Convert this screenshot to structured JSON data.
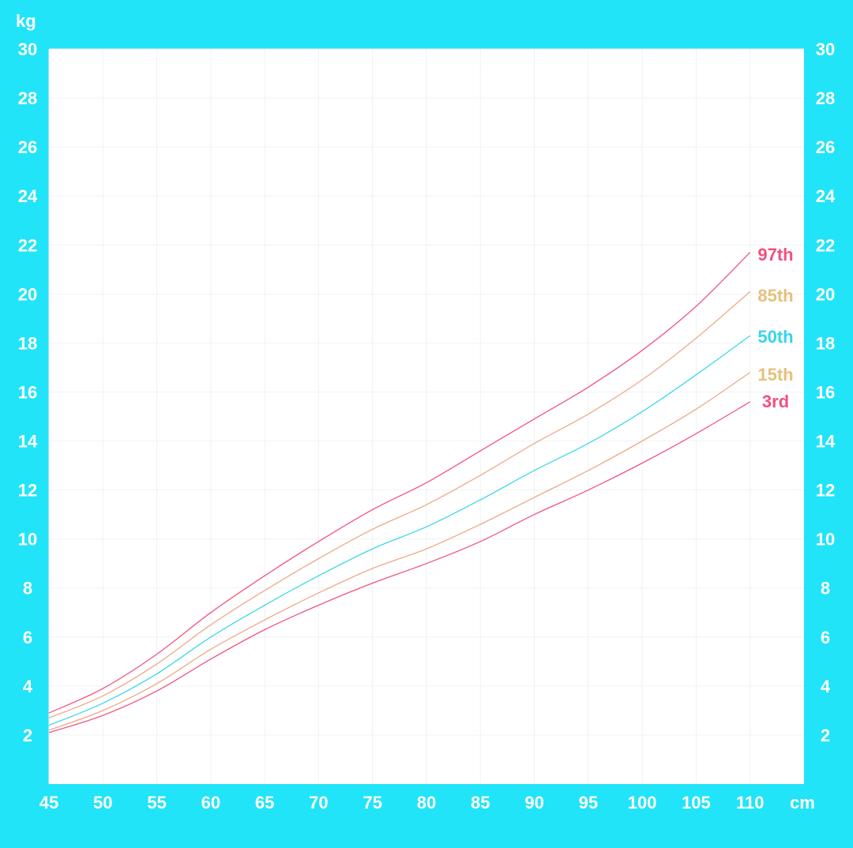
{
  "chart_data": {
    "type": "line",
    "xlabel": "",
    "ylabel": "",
    "x_unit": "cm",
    "y_unit": "kg",
    "xlim": [
      45,
      115
    ],
    "ylim": [
      0,
      30
    ],
    "x_ticks": [
      45,
      50,
      55,
      60,
      65,
      70,
      75,
      80,
      85,
      90,
      95,
      100,
      105,
      110
    ],
    "y_ticks": [
      2,
      4,
      6,
      8,
      10,
      12,
      14,
      16,
      18,
      20,
      22,
      24,
      26,
      28,
      30
    ],
    "grid": true,
    "background_color": "#22e4f9",
    "plot_background": "#ffffff",
    "x": [
      45,
      50,
      55,
      60,
      65,
      70,
      75,
      80,
      85,
      90,
      95,
      100,
      105,
      110
    ],
    "series": [
      {
        "name": "97th",
        "color": "#f2547f",
        "label_color": "#f2507e",
        "values": [
          2.9,
          3.9,
          5.3,
          7.0,
          8.5,
          9.9,
          11.2,
          12.3,
          13.6,
          14.9,
          16.2,
          17.7,
          19.5,
          21.7
        ]
      },
      {
        "name": "85th",
        "color": "#ecaa88",
        "label_color": "#e6c07c",
        "values": [
          2.7,
          3.6,
          4.9,
          6.5,
          7.9,
          9.2,
          10.4,
          11.4,
          12.6,
          13.9,
          15.1,
          16.5,
          18.2,
          20.1
        ]
      },
      {
        "name": "50th",
        "color": "#3cd8ea",
        "label_color": "#35d5ee",
        "values": [
          2.4,
          3.3,
          4.5,
          6.0,
          7.3,
          8.5,
          9.6,
          10.5,
          11.6,
          12.8,
          13.9,
          15.2,
          16.7,
          18.3
        ]
      },
      {
        "name": "15th",
        "color": "#ecaa88",
        "label_color": "#e6c07c",
        "values": [
          2.2,
          3.0,
          4.1,
          5.5,
          6.7,
          7.8,
          8.8,
          9.6,
          10.6,
          11.7,
          12.8,
          14.0,
          15.3,
          16.8
        ]
      },
      {
        "name": "3rd",
        "color": "#f2547f",
        "label_color": "#f2507e",
        "values": [
          2.1,
          2.8,
          3.8,
          5.1,
          6.3,
          7.3,
          8.2,
          9.0,
          9.9,
          11.0,
          12.0,
          13.1,
          14.3,
          15.6
        ]
      }
    ]
  }
}
